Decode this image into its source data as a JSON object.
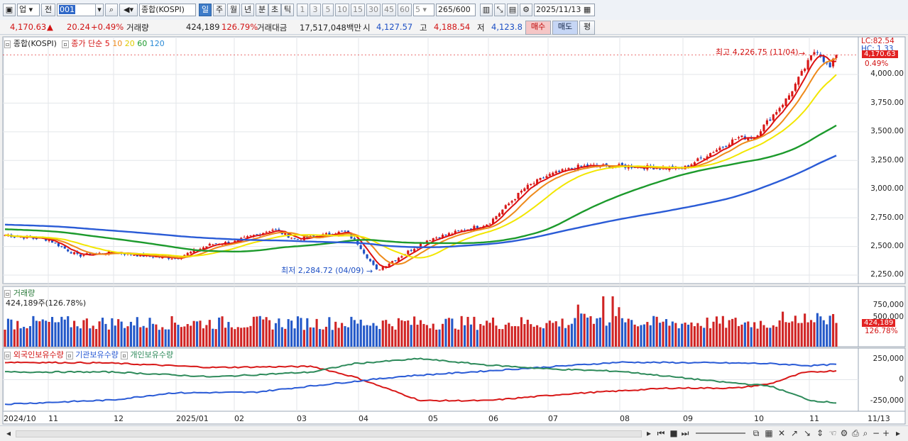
{
  "toolbar": {
    "market": "업",
    "mode": "전",
    "code": "001",
    "name": "종합(KOSPI)",
    "periods": [
      "일",
      "주",
      "월",
      "년",
      "분",
      "초",
      "틱"
    ],
    "selected_period": "일",
    "minutes": [
      "1",
      "3",
      "5",
      "10",
      "15",
      "30",
      "45",
      "60"
    ],
    "unit": "5",
    "count": "265",
    "count_total": "/600",
    "date": "2025/11/13"
  },
  "quote": {
    "price": "4,170.63",
    "arrow": "▲",
    "change": "20.24",
    "change_pct": "+0.49%",
    "volume_label": "거래량",
    "volume": "424,189",
    "volume_pct": "126.79%",
    "amount_label": "거래대금",
    "amount": "17,517,048백만",
    "open_label": "시",
    "open": "4,127.57",
    "high_label": "고",
    "high": "4,188.54",
    "low_label": "저",
    "low": "4,123.8",
    "buy": "매수",
    "sell": "매도",
    "eval": "평"
  },
  "price_pane": {
    "title": "종합(KOSPI)",
    "ma_label": "종가 단순",
    "ma_periods": [
      "5",
      "10",
      "20",
      "60",
      "120"
    ],
    "ma_colors": [
      "#dd1111",
      "#ee8a1a",
      "#f2e600",
      "#1c9a2c",
      "#2a5bd6"
    ],
    "max_note": "최고 4,226.75 (11/04)",
    "min_note": "최저 2,284.72 (04/09)",
    "lc_label": "LC:82.54",
    "hc_label": "HC: 1.33",
    "last_tag": "4,170.63",
    "last_pct": "0.49%",
    "y_ticks": [
      "4,000.00",
      "3,750.00",
      "3,500.00",
      "3,250.00",
      "3,000.00",
      "2,750.00",
      "2,500.00",
      "2,250.00"
    ]
  },
  "volume_pane": {
    "title": "거래량",
    "value_line": "424,189주(126.78%)",
    "y_ticks": [
      "750,000",
      "500,000"
    ],
    "last_tag": "424,189",
    "last_pct": "126.78%"
  },
  "holdings_pane": {
    "series_labels": [
      "외국인보유수량",
      "기관보유수량",
      "개인보유수량"
    ],
    "y_ticks": [
      "250,000",
      "0",
      "-250,000"
    ]
  },
  "x_axis": {
    "labels": [
      "2024/10",
      "11",
      "12",
      "2025/01",
      "02",
      "03",
      "04",
      "05",
      "06",
      "07",
      "08",
      "09",
      "10",
      "11"
    ],
    "last": "11/13"
  },
  "chart_data": [
    {
      "type": "candlestick",
      "title": "종합(KOSPI)",
      "x_range": [
        "2024/10",
        "2025/11/13"
      ],
      "ylim": [
        2200,
        4300
      ],
      "y_scale_ticks": [
        2250,
        2500,
        2750,
        3000,
        3250,
        3500,
        3750,
        4000
      ],
      "close_anchors": [
        {
          "date": "2024/10",
          "value": 2600
        },
        {
          "date": "2024/11",
          "value": 2560
        },
        {
          "date": "2024/11/15",
          "value": 2420
        },
        {
          "date": "2024/12",
          "value": 2450
        },
        {
          "date": "2024/12/20",
          "value": 2410
        },
        {
          "date": "2025/01",
          "value": 2400
        },
        {
          "date": "2025/01/20",
          "value": 2520
        },
        {
          "date": "2025/02",
          "value": 2540
        },
        {
          "date": "2025/02/20",
          "value": 2650
        },
        {
          "date": "2025/03",
          "value": 2560
        },
        {
          "date": "2025/03/25",
          "value": 2630
        },
        {
          "date": "2025/04",
          "value": 2520
        },
        {
          "date": "2025/04/09",
          "value": 2290
        },
        {
          "date": "2025/05",
          "value": 2560
        },
        {
          "date": "2025/06",
          "value": 2700
        },
        {
          "date": "2025/06/20",
          "value": 3010
        },
        {
          "date": "2025/07",
          "value": 3120
        },
        {
          "date": "2025/07/15",
          "value": 3200
        },
        {
          "date": "2025/08",
          "value": 3200
        },
        {
          "date": "2025/09",
          "value": 3180
        },
        {
          "date": "2025/09/25",
          "value": 3450
        },
        {
          "date": "2025/10",
          "value": 3450
        },
        {
          "date": "2025/10/20",
          "value": 3800
        },
        {
          "date": "2025/11/04",
          "value": 4226.75
        },
        {
          "date": "2025/11/10",
          "value": 4050
        },
        {
          "date": "2025/11/13",
          "value": 4170.63
        }
      ],
      "series": [
        {
          "name": "5",
          "color": "#dd1111"
        },
        {
          "name": "10",
          "color": "#ee8a1a"
        },
        {
          "name": "20",
          "color": "#f2e600"
        },
        {
          "name": "60",
          "color": "#1c9a2c"
        },
        {
          "name": "120",
          "color": "#2a5bd6"
        }
      ],
      "annotations": [
        "최고 4,226.75 (11/04)",
        "최저 2,284.72 (04/09)"
      ]
    },
    {
      "type": "bar",
      "title": "거래량",
      "ylim": [
        0,
        1000000
      ],
      "last_value": 424189,
      "colors": {
        "up": "#d02424",
        "down": "#2358c8"
      }
    },
    {
      "type": "line",
      "title": "보유수량",
      "ylim": [
        -350000,
        350000
      ],
      "series": [
        {
          "name": "외국인보유수량",
          "color": "#d81818",
          "anchors": [
            [
              0,
              250000
            ],
            [
              0.12,
              240000
            ],
            [
              0.25,
              175000
            ],
            [
              0.37,
              190000
            ],
            [
              0.42,
              40000
            ],
            [
              0.5,
              -300000
            ],
            [
              0.58,
              -300000
            ],
            [
              0.68,
              -200000
            ],
            [
              0.8,
              -120000
            ],
            [
              0.88,
              -120000
            ],
            [
              0.92,
              -60000
            ],
            [
              0.96,
              100000
            ],
            [
              1.0,
              130000
            ]
          ]
        },
        {
          "name": "기관보유수량",
          "color": "#2a5bd6",
          "anchors": [
            [
              0,
              -350000
            ],
            [
              0.13,
              -290000
            ],
            [
              0.2,
              -190000
            ],
            [
              0.3,
              -180000
            ],
            [
              0.4,
              -50000
            ],
            [
              0.48,
              50000
            ],
            [
              0.56,
              110000
            ],
            [
              0.65,
              180000
            ],
            [
              0.74,
              250000
            ],
            [
              0.86,
              240000
            ],
            [
              0.92,
              230000
            ],
            [
              0.97,
              200000
            ],
            [
              1.0,
              220000
            ]
          ]
        },
        {
          "name": "개인보유수량",
          "color": "#2d8a5a",
          "anchors": [
            [
              0,
              110000
            ],
            [
              0.13,
              110000
            ],
            [
              0.25,
              40000
            ],
            [
              0.37,
              110000
            ],
            [
              0.42,
              230000
            ],
            [
              0.5,
              300000
            ],
            [
              0.58,
              210000
            ],
            [
              0.66,
              150000
            ],
            [
              0.74,
              120000
            ],
            [
              0.86,
              -30000
            ],
            [
              0.92,
              -90000
            ],
            [
              0.97,
              -300000
            ],
            [
              1.0,
              -330000
            ]
          ]
        }
      ]
    }
  ]
}
